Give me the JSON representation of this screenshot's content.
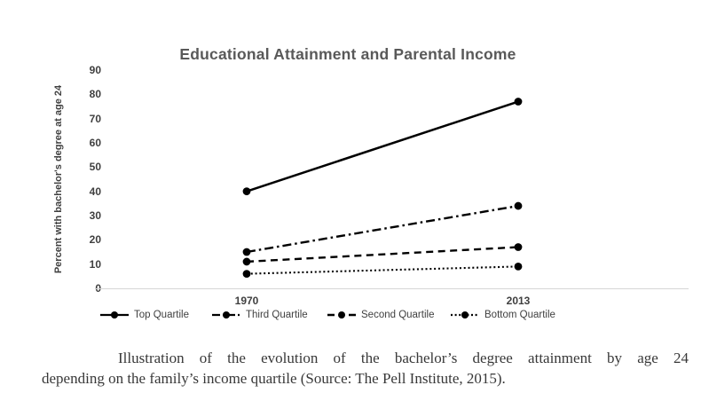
{
  "chart_data": {
    "type": "line",
    "title": "Educational Attainment and Parental Income",
    "categories": [
      "1970",
      "2013"
    ],
    "series": [
      {
        "name": "Top Quartile",
        "values": [
          40,
          77
        ],
        "style": "solid"
      },
      {
        "name": "Third Quartile",
        "values": [
          15,
          34
        ],
        "style": "dash-dot"
      },
      {
        "name": "Second Quartile",
        "values": [
          11,
          17
        ],
        "style": "dashed"
      },
      {
        "name": "Bottom Quartile",
        "values": [
          6,
          9
        ],
        "style": "dotted"
      }
    ],
    "xlabel": "",
    "ylabel": "Percent with bachelor's degree at age 24",
    "ylim": [
      0,
      90
    ],
    "ytick_step": 10,
    "grid": false,
    "legend_position": "bottom",
    "line_color": "#000000",
    "marker": "circle"
  },
  "caption": {
    "line1": "Illustration of the evolution of the bachelor’s degree attainment by age 24",
    "line2": "depending on the family’s income quartile (Source: The Pell Institute, 2015)."
  },
  "colors": {
    "title_text": "#595959",
    "axis_text": "#3f3f3f",
    "legend_text": "#404040",
    "axis_line": "#d6d6d6",
    "series_line": "#000000",
    "caption_text": "#383838",
    "background": "#ffffff"
  }
}
